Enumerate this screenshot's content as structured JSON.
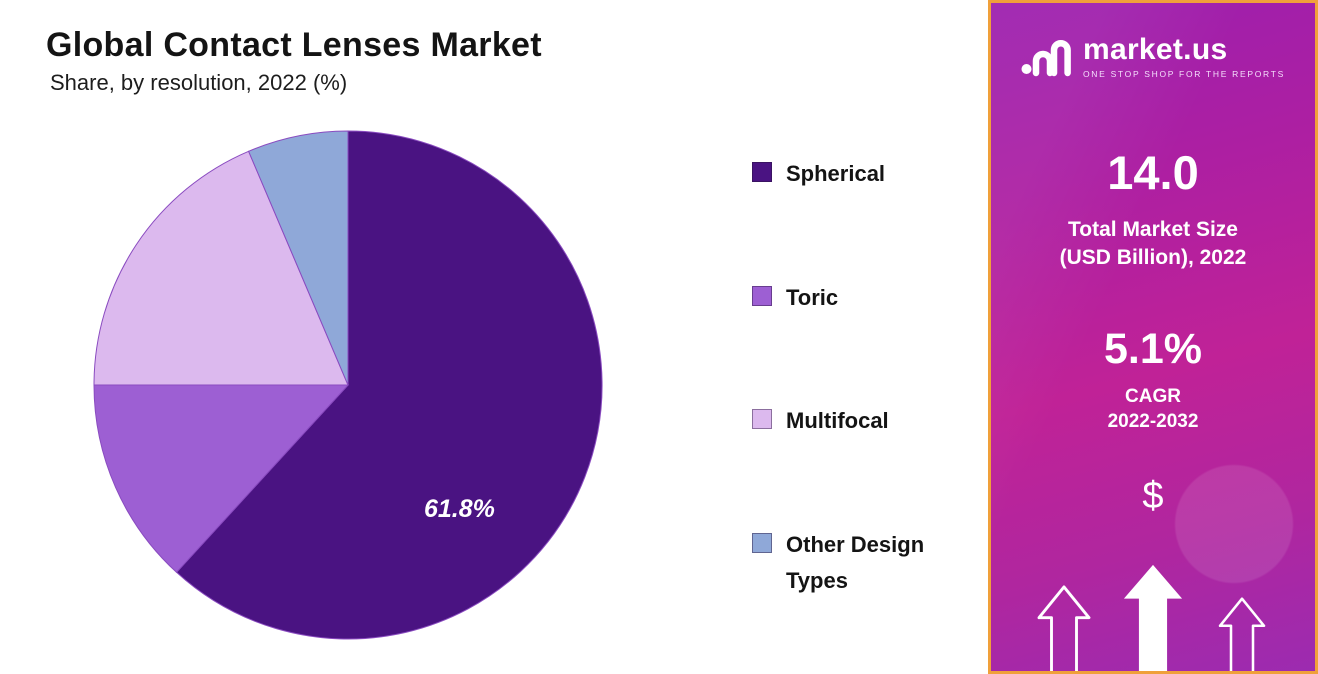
{
  "chart_data": {
    "type": "pie",
    "title": "Global Contact Lenses Market",
    "subtitle": "Share, by resolution, 2022 (%)",
    "units": "%",
    "start_angle_deg": -90,
    "direction": "clockwise",
    "legend_position": "right",
    "series": [
      {
        "name": "Spherical",
        "value": 61.8,
        "color": "#4a1382",
        "label": "61.8%"
      },
      {
        "name": "Toric",
        "value": 13.2,
        "color": "#9d5fd3",
        "label": ""
      },
      {
        "name": "Multifocal",
        "value": 18.6,
        "color": "#dcb9ee",
        "label": ""
      },
      {
        "name": "Other Design Types",
        "value": 6.4,
        "color": "#8fa8d8",
        "label": ""
      }
    ]
  },
  "sidebar": {
    "brand": {
      "name": "market.us",
      "tagline": "ONE STOP SHOP FOR THE REPORTS"
    },
    "stats": [
      {
        "value": "14.0",
        "caption_lines": [
          "Total Market Size",
          "(USD Billion), 2022"
        ]
      },
      {
        "value": "5.1%",
        "caption_lines": [
          "CAGR",
          "2022-2032"
        ]
      }
    ],
    "dollar_symbol": "$",
    "colors": {
      "border": "#f0a03a",
      "gradient_start": "#9c1fae",
      "gradient_end": "#c02297",
      "text": "#ffffff"
    }
  }
}
